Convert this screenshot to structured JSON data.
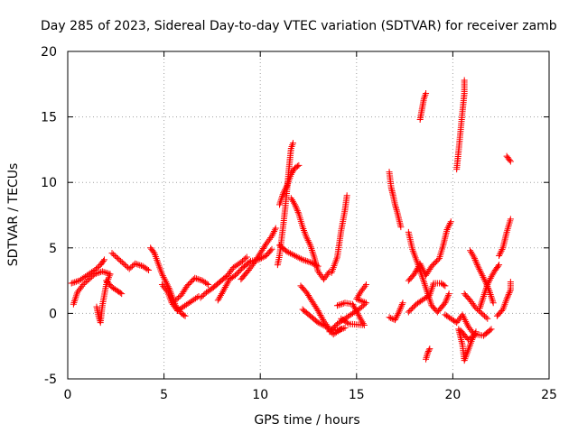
{
  "chart_data": {
    "type": "scatter",
    "title": "Day 285 of 2023, Sidereal Day-to-day VTEC variation (SDTVAR) for receiver zamb",
    "xlabel": "GPS time / hours",
    "ylabel": "SDTVAR / TECUs",
    "xlim": [
      0,
      25
    ],
    "ylim": [
      -5,
      20
    ],
    "xticks": [
      0,
      5,
      10,
      15,
      20,
      25
    ],
    "yticks": [
      -5,
      0,
      5,
      10,
      15,
      20
    ],
    "grid": true,
    "marker": "+",
    "color": "#ff0000",
    "series": [
      {
        "name": "SDTVAR",
        "segments": [
          [
            [
              0.2,
              2.3
            ],
            [
              0.6,
              2.5
            ],
            [
              1.0,
              2.9
            ],
            [
              1.4,
              3.3
            ],
            [
              1.7,
              3.7
            ],
            [
              1.9,
              4.1
            ]
          ],
          [
            [
              0.3,
              0.7
            ],
            [
              0.5,
              1.6
            ],
            [
              0.8,
              2.2
            ],
            [
              1.1,
              2.6
            ],
            [
              1.4,
              3.0
            ],
            [
              1.8,
              3.2
            ],
            [
              2.2,
              3.0
            ]
          ],
          [
            [
              1.5,
              0.5
            ],
            [
              1.6,
              -0.2
            ],
            [
              1.7,
              -0.7
            ],
            [
              1.8,
              0.6
            ],
            [
              2.0,
              2.2
            ],
            [
              2.2,
              3.0
            ]
          ],
          [
            [
              2.0,
              2.5
            ],
            [
              2.3,
              2.0
            ],
            [
              2.6,
              1.7
            ],
            [
              2.8,
              1.5
            ]
          ],
          [
            [
              2.3,
              4.6
            ],
            [
              2.6,
              4.2
            ],
            [
              2.9,
              3.8
            ],
            [
              3.2,
              3.4
            ],
            [
              3.5,
              3.8
            ],
            [
              3.9,
              3.6
            ],
            [
              4.2,
              3.3
            ]
          ],
          [
            [
              4.3,
              5.0
            ],
            [
              4.5,
              4.6
            ],
            [
              4.7,
              3.8
            ],
            [
              4.9,
              3.0
            ],
            [
              5.1,
              2.4
            ],
            [
              5.3,
              1.8
            ],
            [
              5.6,
              0.6
            ],
            [
              5.9,
              0.0
            ],
            [
              6.1,
              -0.2
            ]
          ],
          [
            [
              4.9,
              2.2
            ],
            [
              5.2,
              1.6
            ],
            [
              5.4,
              0.8
            ],
            [
              5.7,
              0.2
            ],
            [
              6.0,
              0.5
            ],
            [
              6.4,
              0.9
            ],
            [
              6.8,
              1.3
            ]
          ],
          [
            [
              5.6,
              1.0
            ],
            [
              5.9,
              1.4
            ],
            [
              6.2,
              2.1
            ],
            [
              6.6,
              2.7
            ],
            [
              7.0,
              2.5
            ],
            [
              7.3,
              2.2
            ]
          ],
          [
            [
              6.9,
              1.2
            ],
            [
              7.2,
              1.6
            ],
            [
              7.5,
              1.9
            ],
            [
              7.9,
              2.4
            ],
            [
              8.3,
              2.9
            ],
            [
              8.6,
              3.5
            ],
            [
              9.0,
              3.9
            ],
            [
              9.3,
              4.3
            ]
          ],
          [
            [
              7.8,
              1.0
            ],
            [
              8.0,
              1.5
            ],
            [
              8.4,
              2.6
            ],
            [
              8.7,
              2.9
            ],
            [
              9.1,
              3.5
            ],
            [
              9.5,
              4.0
            ],
            [
              9.9,
              4.1
            ],
            [
              10.3,
              4.4
            ],
            [
              10.6,
              4.9
            ]
          ],
          [
            [
              9.0,
              2.6
            ],
            [
              9.4,
              3.3
            ],
            [
              9.7,
              3.9
            ],
            [
              10.0,
              4.6
            ],
            [
              10.3,
              5.3
            ],
            [
              10.6,
              5.9
            ],
            [
              10.8,
              6.5
            ]
          ],
          [
            [
              10.9,
              3.7
            ],
            [
              11.0,
              4.4
            ],
            [
              11.2,
              6.8
            ],
            [
              11.3,
              8.1
            ],
            [
              11.4,
              9.6
            ],
            [
              11.5,
              11.2
            ],
            [
              11.6,
              12.6
            ],
            [
              11.7,
              13.0
            ]
          ],
          [
            [
              11.0,
              8.3
            ],
            [
              11.2,
              9.2
            ],
            [
              11.4,
              9.8
            ],
            [
              11.6,
              10.6
            ],
            [
              11.8,
              11.1
            ],
            [
              12.0,
              11.3
            ]
          ],
          [
            [
              11.6,
              8.8
            ],
            [
              11.8,
              8.3
            ],
            [
              12.0,
              7.6
            ],
            [
              12.2,
              6.6
            ],
            [
              12.4,
              5.8
            ],
            [
              12.6,
              5.2
            ],
            [
              12.8,
              4.3
            ],
            [
              13.0,
              3.2
            ],
            [
              13.3,
              2.6
            ],
            [
              13.6,
              3.2
            ]
          ],
          [
            [
              11.0,
              5.2
            ],
            [
              11.4,
              4.7
            ],
            [
              11.8,
              4.4
            ],
            [
              12.2,
              4.1
            ],
            [
              12.6,
              3.9
            ],
            [
              13.0,
              3.6
            ]
          ],
          [
            [
              12.1,
              2.1
            ],
            [
              12.4,
              1.6
            ],
            [
              12.7,
              0.9
            ],
            [
              13.0,
              0.2
            ],
            [
              13.3,
              -0.6
            ],
            [
              13.6,
              -1.2
            ],
            [
              14.0,
              -1.3
            ],
            [
              14.4,
              -1.1
            ]
          ],
          [
            [
              12.2,
              0.3
            ],
            [
              12.6,
              -0.2
            ],
            [
              13.0,
              -0.7
            ],
            [
              13.4,
              -1.0
            ],
            [
              13.8,
              -1.6
            ],
            [
              14.2,
              -1.2
            ]
          ],
          [
            [
              13.7,
              3.1
            ],
            [
              14.0,
              4.3
            ],
            [
              14.2,
              6.3
            ],
            [
              14.4,
              7.9
            ],
            [
              14.5,
              9.0
            ]
          ],
          [
            [
              13.6,
              -1.4
            ],
            [
              14.0,
              -0.8
            ],
            [
              14.4,
              -0.4
            ],
            [
              14.8,
              0.0
            ],
            [
              15.2,
              0.4
            ],
            [
              15.5,
              0.8
            ],
            [
              15.0,
              1.1
            ],
            [
              15.2,
              1.6
            ],
            [
              15.5,
              2.2
            ]
          ],
          [
            [
              14.0,
              0.6
            ],
            [
              14.4,
              0.8
            ],
            [
              14.8,
              0.7
            ],
            [
              15.2,
              -0.4
            ],
            [
              15.4,
              -0.9
            ],
            [
              14.6,
              -0.8
            ],
            [
              14.2,
              -0.4
            ]
          ],
          [
            [
              16.7,
              -0.3
            ],
            [
              17.0,
              -0.5
            ],
            [
              17.2,
              0.1
            ],
            [
              17.4,
              0.8
            ]
          ],
          [
            [
              16.7,
              10.8
            ],
            [
              16.8,
              9.6
            ],
            [
              16.9,
              9.0
            ],
            [
              17.0,
              8.3
            ],
            [
              17.1,
              7.8
            ],
            [
              17.3,
              6.6
            ]
          ],
          [
            [
              17.7,
              6.2
            ],
            [
              17.9,
              4.9
            ],
            [
              18.2,
              3.7
            ],
            [
              18.5,
              2.4
            ],
            [
              18.7,
              1.5
            ],
            [
              18.9,
              0.6
            ],
            [
              19.2,
              0.1
            ],
            [
              19.6,
              0.8
            ],
            [
              19.8,
              1.5
            ]
          ],
          [
            [
              17.7,
              0.1
            ],
            [
              18.1,
              0.7
            ],
            [
              18.4,
              1.0
            ],
            [
              18.8,
              1.4
            ],
            [
              19.0,
              2.3
            ],
            [
              19.4,
              2.3
            ],
            [
              19.6,
              2.1
            ]
          ],
          [
            [
              17.7,
              2.5
            ],
            [
              18.0,
              3.0
            ],
            [
              18.3,
              3.8
            ],
            [
              18.6,
              2.9
            ],
            [
              18.9,
              3.6
            ],
            [
              19.3,
              4.2
            ],
            [
              19.5,
              5.2
            ],
            [
              19.7,
              6.4
            ],
            [
              19.9,
              7.0
            ]
          ],
          [
            [
              18.3,
              14.8
            ],
            [
              18.4,
              15.6
            ],
            [
              18.5,
              16.4
            ],
            [
              18.6,
              16.8
            ]
          ],
          [
            [
              18.6,
              -3.5
            ],
            [
              18.7,
              -3.0
            ],
            [
              18.8,
              -2.7
            ]
          ],
          [
            [
              19.6,
              -0.1
            ],
            [
              19.9,
              -0.4
            ],
            [
              20.2,
              -0.7
            ],
            [
              20.5,
              -0.1
            ],
            [
              20.8,
              -1.0
            ],
            [
              21.1,
              -1.6
            ]
          ],
          [
            [
              20.2,
              11.0
            ],
            [
              20.3,
              12.4
            ],
            [
              20.4,
              13.9
            ],
            [
              20.5,
              15.4
            ],
            [
              20.6,
              16.8
            ],
            [
              20.6,
              17.8
            ]
          ],
          [
            [
              20.3,
              -1.2
            ],
            [
              20.5,
              -2.4
            ],
            [
              20.6,
              -3.6
            ],
            [
              20.8,
              -2.8
            ],
            [
              21.0,
              -2.0
            ],
            [
              21.2,
              -1.4
            ]
          ],
          [
            [
              20.4,
              -1.3
            ],
            [
              20.8,
              -2.0
            ],
            [
              21.2,
              -1.6
            ],
            [
              21.6,
              -1.7
            ],
            [
              22.0,
              -1.2
            ]
          ],
          [
            [
              20.9,
              4.8
            ],
            [
              21.1,
              4.3
            ],
            [
              21.3,
              3.6
            ],
            [
              21.5,
              3.0
            ],
            [
              21.7,
              2.4
            ],
            [
              21.9,
              1.7
            ],
            [
              22.1,
              0.8
            ]
          ],
          [
            [
              20.6,
              1.5
            ],
            [
              20.9,
              1.0
            ],
            [
              21.2,
              0.4
            ],
            [
              21.5,
              0.0
            ],
            [
              21.8,
              -0.4
            ]
          ],
          [
            [
              21.4,
              0.4
            ],
            [
              21.6,
              1.3
            ],
            [
              21.8,
              2.2
            ],
            [
              22.0,
              2.8
            ],
            [
              22.2,
              3.3
            ],
            [
              22.4,
              3.7
            ]
          ],
          [
            [
              22.3,
              -0.2
            ],
            [
              22.6,
              0.3
            ],
            [
              22.8,
              1.1
            ],
            [
              23.0,
              1.8
            ],
            [
              23.0,
              2.4
            ]
          ],
          [
            [
              22.4,
              4.4
            ],
            [
              22.6,
              5.0
            ],
            [
              22.8,
              6.2
            ],
            [
              23.0,
              7.2
            ]
          ],
          [
            [
              22.8,
              12.0
            ],
            [
              22.9,
              11.8
            ],
            [
              23.0,
              11.6
            ]
          ]
        ]
      }
    ]
  }
}
